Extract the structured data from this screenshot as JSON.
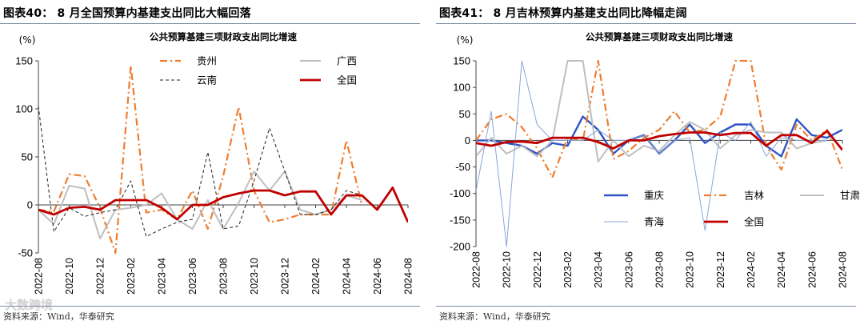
{
  "left": {
    "figure_title": "图表40：  8 月全国预算内基建支出同比大幅回落",
    "source": "资料来源：Wind，华泰研究",
    "watermark": "大数跨境"
  },
  "right": {
    "figure_title": "图表41：  8 月吉林预算内基建支出同比降幅走阔",
    "source": "资料来源：Wind，华泰研究"
  },
  "chart_data": [
    {
      "type": "line",
      "title": "公共预算基建三项财政支出同比增速",
      "ylabel": "(%)",
      "ylim": [
        -50,
        150
      ],
      "yticks": [
        -50,
        0,
        50,
        100,
        150
      ],
      "x": [
        "2022-08",
        "2022-09",
        "2022-10",
        "2022-11",
        "2022-12",
        "2023-01",
        "2023-02",
        "2023-03",
        "2023-04",
        "2023-05",
        "2023-06",
        "2023-07",
        "2023-08",
        "2023-09",
        "2023-10",
        "2023-11",
        "2023-12",
        "2024-01",
        "2024-02",
        "2024-03",
        "2024-04",
        "2024-05",
        "2024-06",
        "2024-07",
        "2024-08"
      ],
      "xtick_labels": [
        "2022-08",
        "2022-10",
        "2022-12",
        "2023-02",
        "2023-04",
        "2023-06",
        "2023-08",
        "2023-10",
        "2023-12",
        "2024-02",
        "2024-04",
        "2024-06",
        "2024-08"
      ],
      "legend_position": "top",
      "series": [
        {
          "name": "贵州",
          "color": "#ed7d31",
          "style": "dashdot",
          "values": [
            -5,
            -7,
            32,
            30,
            -3,
            -50,
            145,
            -8,
            -5,
            -15,
            15,
            -25,
            30,
            102,
            15,
            -18,
            -15,
            -10,
            -10,
            -10,
            67,
            0,
            null,
            null,
            null
          ]
        },
        {
          "name": "广西",
          "color": "#bfbfbf",
          "style": "solid",
          "values": [
            -5,
            -20,
            20,
            17,
            -35,
            -5,
            -3,
            0,
            12,
            -15,
            -25,
            5,
            -25,
            2,
            35,
            15,
            35,
            -5,
            -10,
            -5,
            10,
            5,
            null,
            null,
            null
          ]
        },
        {
          "name": "云南",
          "color": "#222222",
          "style": "dashed",
          "values": [
            103,
            -28,
            -3,
            -12,
            -8,
            -5,
            25,
            -33,
            -25,
            -18,
            -15,
            55,
            -25,
            -22,
            25,
            80,
            35,
            -10,
            -10,
            -5,
            15,
            10,
            null,
            null,
            null
          ]
        },
        {
          "name": "全国",
          "color": "#c00000",
          "style": "solid",
          "values": [
            -5,
            -10,
            -3,
            -2,
            -5,
            5,
            5,
            5,
            -3,
            -15,
            0,
            0,
            8,
            12,
            15,
            15,
            10,
            14,
            14,
            -10,
            10,
            10,
            -5,
            18,
            -18
          ]
        }
      ]
    },
    {
      "type": "line",
      "title": "公共预算基建三项财政支出同比增速",
      "ylabel": "(%)",
      "ylim": [
        -200,
        150
      ],
      "yticks": [
        -200,
        -150,
        -100,
        -50,
        0,
        50,
        100,
        150
      ],
      "x": [
        "2022-08",
        "2022-09",
        "2022-10",
        "2022-11",
        "2022-12",
        "2023-01",
        "2023-02",
        "2023-03",
        "2023-04",
        "2023-05",
        "2023-06",
        "2023-07",
        "2023-08",
        "2023-09",
        "2023-10",
        "2023-11",
        "2023-12",
        "2024-01",
        "2024-02",
        "2024-03",
        "2024-04",
        "2024-05",
        "2024-06",
        "2024-07",
        "2024-08"
      ],
      "xtick_labels": [
        "2022-08",
        "2022-10",
        "2022-12",
        "2023-02",
        "2023-04",
        "2023-06",
        "2023-08",
        "2023-10",
        "2023-12",
        "2024-02",
        "2024-04",
        "2024-06",
        "2024-08"
      ],
      "legend_position": "bottom-left",
      "series": [
        {
          "name": "重庆",
          "color": "#2f55c4",
          "style": "solid",
          "values": [
            0,
            0,
            -5,
            -10,
            -25,
            -5,
            -10,
            45,
            20,
            -25,
            0,
            10,
            -25,
            0,
            30,
            -5,
            15,
            30,
            30,
            -10,
            -30,
            40,
            10,
            5,
            20
          ]
        },
        {
          "name": "吉林",
          "color": "#ed7d31",
          "style": "dashdot",
          "values": [
            0,
            40,
            50,
            25,
            -15,
            -70,
            5,
            0,
            150,
            -35,
            -20,
            5,
            20,
            55,
            15,
            20,
            45,
            150,
            150,
            -10,
            -55,
            30,
            0,
            20,
            -55
          ]
        },
        {
          "name": "甘肃",
          "color": "#bfbfbf",
          "style": "solid",
          "values": [
            -30,
            5,
            -25,
            -10,
            -30,
            0,
            150,
            150,
            -40,
            0,
            -30,
            -10,
            -20,
            10,
            35,
            20,
            -15,
            10,
            20,
            15,
            15,
            -15,
            -5,
            0,
            null
          ]
        },
        {
          "name": "青海",
          "color": "#8aa6d6",
          "style": "solid",
          "values": [
            -95,
            55,
            -200,
            150,
            30,
            0,
            0,
            0,
            20,
            0,
            0,
            10,
            -25,
            0,
            5,
            -170,
            15,
            0,
            35,
            -30,
            5,
            0,
            0,
            0,
            null
          ]
        },
        {
          "name": "全国",
          "color": "#c00000",
          "style": "solid",
          "values": [
            -5,
            -10,
            -3,
            -2,
            -5,
            5,
            5,
            5,
            -3,
            -15,
            0,
            0,
            8,
            12,
            15,
            15,
            10,
            14,
            14,
            -10,
            10,
            10,
            -5,
            18,
            -18
          ]
        }
      ]
    }
  ]
}
